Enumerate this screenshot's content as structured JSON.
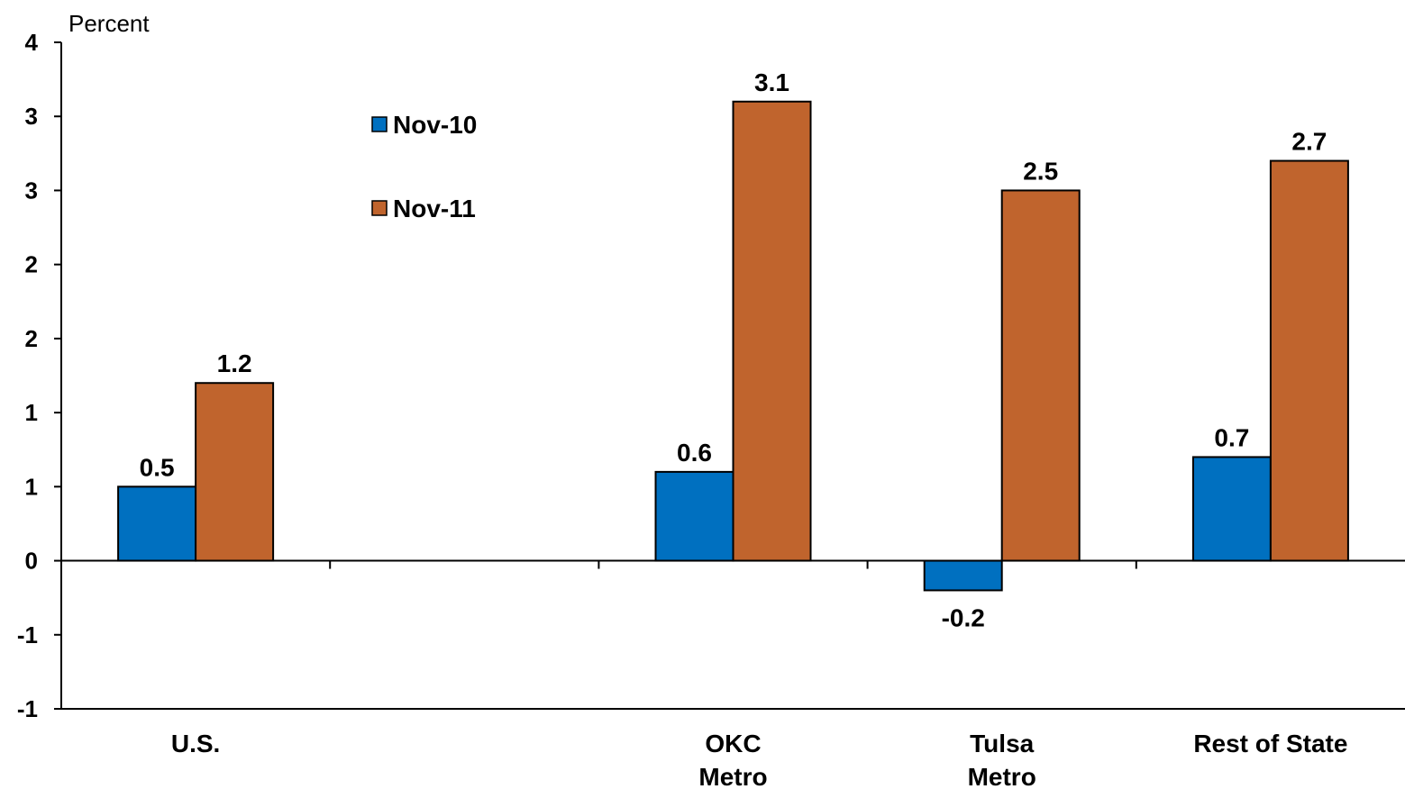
{
  "chart_data": {
    "type": "bar",
    "unit_label": "Percent",
    "categories": [
      [
        "U.S."
      ],
      [
        "",
        ""
      ],
      [
        "OKC",
        "Metro"
      ],
      [
        "Tulsa",
        "Metro"
      ],
      [
        "Rest of State"
      ]
    ],
    "series": [
      {
        "name": "Nov-10",
        "color": "#0070C0",
        "values": [
          0.5,
          null,
          0.6,
          -0.2,
          0.7
        ],
        "labels": [
          "0.5",
          "",
          "0.6",
          "-0.2",
          "0.7"
        ]
      },
      {
        "name": "Nov-11",
        "color": "#C0642D",
        "values": [
          1.2,
          null,
          3.1,
          2.5,
          2.7
        ],
        "labels": [
          "1.2",
          "",
          "3.1",
          "2.5",
          "2.7"
        ]
      }
    ],
    "yaxis": {
      "range": [
        -1,
        3.5
      ],
      "ticks": [
        3.5,
        3.0,
        2.5,
        2.0,
        1.5,
        1.0,
        0.5,
        0.0,
        -0.5,
        -1.0
      ],
      "tick_labels": [
        "4",
        "3",
        "3",
        "2",
        "2",
        "1",
        "1",
        "0",
        "-1",
        "-1"
      ]
    },
    "grid": false,
    "legend_position": "top-left-inside"
  }
}
